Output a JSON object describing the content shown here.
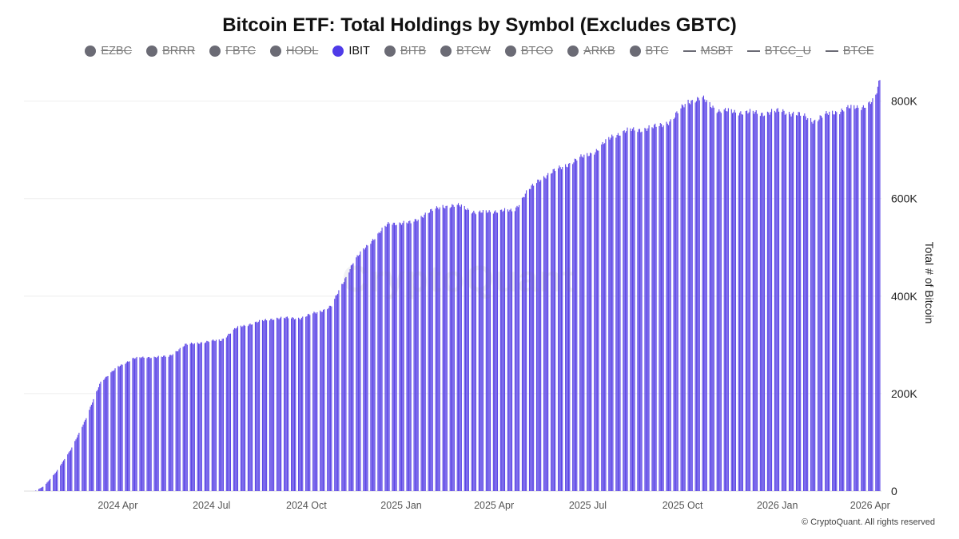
{
  "title": "Bitcoin ETF: Total Holdings by Symbol (Excludes GBTC)",
  "legend": [
    {
      "label": "EZBC",
      "marker": "dot",
      "color": "#6b6b75",
      "enabled": false
    },
    {
      "label": "BRRR",
      "marker": "dot",
      "color": "#6b6b75",
      "enabled": false
    },
    {
      "label": "FBTC",
      "marker": "dot",
      "color": "#6b6b75",
      "enabled": false
    },
    {
      "label": "HODL",
      "marker": "dot",
      "color": "#6b6b75",
      "enabled": false
    },
    {
      "label": "IBIT",
      "marker": "dot",
      "color": "#4f3be8",
      "enabled": true
    },
    {
      "label": "BITB",
      "marker": "dot",
      "color": "#6b6b75",
      "enabled": false
    },
    {
      "label": "BTCW",
      "marker": "dot",
      "color": "#6b6b75",
      "enabled": false
    },
    {
      "label": "BTCO",
      "marker": "dot",
      "color": "#6b6b75",
      "enabled": false
    },
    {
      "label": "ARKB",
      "marker": "dot",
      "color": "#6b6b75",
      "enabled": false
    },
    {
      "label": "BTC",
      "marker": "dot",
      "color": "#6b6b75",
      "enabled": false
    },
    {
      "label": "MSBT",
      "marker": "line",
      "color": "#6b6b75",
      "enabled": false
    },
    {
      "label": "BTCC_U",
      "marker": "line",
      "color": "#6b6b75",
      "enabled": false
    },
    {
      "label": "BTCE",
      "marker": "line",
      "color": "#6b6b75",
      "enabled": false
    }
  ],
  "watermark": "CryptoQuant",
  "footer": "© CryptoQuant. All rights reserved",
  "chart_data": {
    "type": "bar",
    "series": [
      {
        "name": "IBIT",
        "color": "#5b45e6",
        "points": [
          [
            "2024-01-11",
            0
          ],
          [
            "2024-01-20",
            10000
          ],
          [
            "2024-02-01",
            40000
          ],
          [
            "2024-02-15",
            85000
          ],
          [
            "2024-03-01",
            150000
          ],
          [
            "2024-03-15",
            225000
          ],
          [
            "2024-04-01",
            255000
          ],
          [
            "2024-04-15",
            272000
          ],
          [
            "2024-05-01",
            275000
          ],
          [
            "2024-05-20",
            276000
          ],
          [
            "2024-06-05",
            300000
          ],
          [
            "2024-06-20",
            305000
          ],
          [
            "2024-07-10",
            310000
          ],
          [
            "2024-07-25",
            335000
          ],
          [
            "2024-08-10",
            345000
          ],
          [
            "2024-09-01",
            355000
          ],
          [
            "2024-09-25",
            355000
          ],
          [
            "2024-10-15",
            370000
          ],
          [
            "2024-10-25",
            380000
          ],
          [
            "2024-11-01",
            410000
          ],
          [
            "2024-11-15",
            470000
          ],
          [
            "2024-12-01",
            510000
          ],
          [
            "2024-12-20",
            550000
          ],
          [
            "2025-01-10",
            550000
          ],
          [
            "2025-01-25",
            570000
          ],
          [
            "2025-02-10",
            585000
          ],
          [
            "2025-02-28",
            585000
          ],
          [
            "2025-03-15",
            570000
          ],
          [
            "2025-04-01",
            575000
          ],
          [
            "2025-04-20",
            575000
          ],
          [
            "2025-05-01",
            610000
          ],
          [
            "2025-05-15",
            640000
          ],
          [
            "2025-06-01",
            660000
          ],
          [
            "2025-06-20",
            680000
          ],
          [
            "2025-07-10",
            700000
          ],
          [
            "2025-07-25",
            730000
          ],
          [
            "2025-08-10",
            740000
          ],
          [
            "2025-09-01",
            745000
          ],
          [
            "2025-09-20",
            760000
          ],
          [
            "2025-10-05",
            800000
          ],
          [
            "2025-10-20",
            805000
          ],
          [
            "2025-11-05",
            780000
          ],
          [
            "2025-11-25",
            778000
          ],
          [
            "2025-12-15",
            775000
          ],
          [
            "2026-01-05",
            780000
          ],
          [
            "2026-01-25",
            770000
          ],
          [
            "2026-02-05",
            760000
          ],
          [
            "2026-02-20",
            775000
          ],
          [
            "2026-03-10",
            785000
          ],
          [
            "2026-03-25",
            790000
          ],
          [
            "2026-04-05",
            800000
          ],
          [
            "2026-04-10",
            845000
          ]
        ]
      }
    ],
    "xlim": [
      "2024-01-01",
      "2026-04-12"
    ],
    "xticks": [
      {
        "date": "2024-04-01",
        "label": "2024 Apr"
      },
      {
        "date": "2024-07-01",
        "label": "2024 Jul"
      },
      {
        "date": "2024-10-01",
        "label": "2024 Oct"
      },
      {
        "date": "2025-01-01",
        "label": "2025 Jan"
      },
      {
        "date": "2025-04-01",
        "label": "2025 Apr"
      },
      {
        "date": "2025-07-01",
        "label": "2025 Jul"
      },
      {
        "date": "2025-10-01",
        "label": "2025 Oct"
      },
      {
        "date": "2026-01-01",
        "label": "2026 Jan"
      },
      {
        "date": "2026-04-01",
        "label": "2026 Apr"
      }
    ],
    "ylim": [
      0,
      860000
    ],
    "yticks": [
      {
        "value": 0,
        "label": "0"
      },
      {
        "value": 200000,
        "label": "200K"
      },
      {
        "value": 400000,
        "label": "400K"
      },
      {
        "value": 600000,
        "label": "600K"
      },
      {
        "value": 800000,
        "label": "800K"
      }
    ],
    "ylabel": "Total # of Bitcoin",
    "y_axis_side": "right",
    "grid": true
  }
}
